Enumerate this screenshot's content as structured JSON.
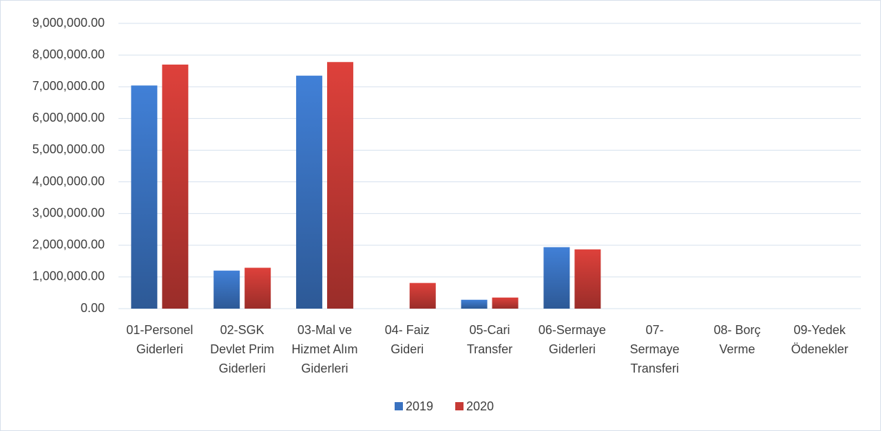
{
  "chart_data": {
    "type": "bar",
    "categories": [
      [
        "01-Personel",
        "Giderleri"
      ],
      [
        "02-SGK",
        "Devlet Prim",
        "Giderleri"
      ],
      [
        "03-Mal ve",
        "Hizmet Alım",
        "Giderleri"
      ],
      [
        "04- Faiz",
        "Gideri"
      ],
      [
        "05-Cari",
        "Transfer"
      ],
      [
        "06-Sermaye",
        "Giderleri"
      ],
      [
        "07-",
        "Sermaye",
        "Transferi"
      ],
      [
        "08- Borç",
        "Verme"
      ],
      [
        "09-Yedek",
        "Ödenekler"
      ]
    ],
    "series": [
      {
        "name": "2019",
        "color": "#3a72c0",
        "values": [
          7040000,
          1200000,
          7350000,
          0,
          280000,
          1940000,
          0,
          0,
          0
        ]
      },
      {
        "name": "2020",
        "color": "#c63a35",
        "values": [
          7700000,
          1290000,
          7780000,
          810000,
          350000,
          1870000,
          0,
          0,
          0
        ]
      }
    ],
    "ylim": [
      0,
      9000000
    ],
    "yticks": [
      {
        "value": 0,
        "label": "0.00"
      },
      {
        "value": 1000000,
        "label": "1,000,000.00"
      },
      {
        "value": 2000000,
        "label": "2,000,000.00"
      },
      {
        "value": 3000000,
        "label": "3,000,000.00"
      },
      {
        "value": 4000000,
        "label": "4,000,000.00"
      },
      {
        "value": 5000000,
        "label": "5,000,000.00"
      },
      {
        "value": 6000000,
        "label": "6,000,000.00"
      },
      {
        "value": 7000000,
        "label": "7,000,000.00"
      },
      {
        "value": 8000000,
        "label": "8,000,000.00"
      },
      {
        "value": 9000000,
        "label": "9,000,000.00"
      }
    ],
    "grid": true,
    "legend": "bottom"
  }
}
